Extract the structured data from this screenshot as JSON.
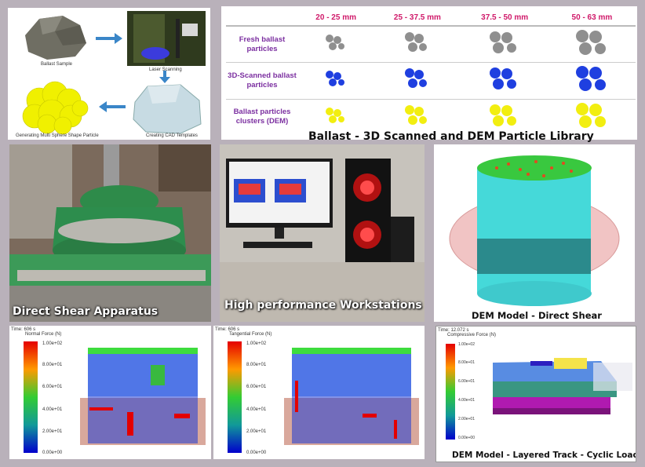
{
  "workflow": {
    "ballast_sample": "Ballast Sample",
    "laser_scanning": "Laser Scanning",
    "cad_templates": "Creating CAD Templates",
    "multi_sphere": "Generating Multi Sphere Shape Particle"
  },
  "library": {
    "columns": [
      "20 - 25 mm",
      "25 - 37.5 mm",
      "37.5 - 50 mm",
      "50 - 63 mm"
    ],
    "rows": [
      {
        "label": "Fresh ballast particles",
        "color": "#8f8f8f"
      },
      {
        "label": "3D-Scanned ballast particles",
        "color": "#1f3fe0"
      },
      {
        "label": "Ballast particles clusters (DEM)",
        "color": "#f2ee10"
      }
    ],
    "caption": "Ballast - 3D Scanned and DEM Particle Library"
  },
  "captions": {
    "direct_shear_apparatus": "Direct Shear Apparatus",
    "workstations": "High performance Workstations",
    "dem_direct_shear": "DEM Model - Direct Shear",
    "dem_layered_track": "DEM Model - Layered Track - Cyclic Load"
  },
  "force_plots": [
    {
      "time": "Time: 606 s",
      "title": "Normal Force (N)",
      "ticks": [
        "1.00e+02",
        "8.00e+01",
        "6.00e+01",
        "4.00e+01",
        "2.00e+01",
        "0.00e+00"
      ]
    },
    {
      "time": "Time: 606 s",
      "title": "Tangential Force (N)",
      "ticks": [
        "1.00e+02",
        "8.00e+01",
        "6.00e+01",
        "4.00e+01",
        "2.00e+01",
        "0.00e+00"
      ]
    }
  ],
  "track_plot": {
    "time": "Time: 12.072 s",
    "title": "Compressive Force (N)",
    "ticks": [
      "1.00e+02",
      "8.00e+01",
      "6.00e+01",
      "4.00e+01",
      "2.00e+01",
      "0.00e+00"
    ]
  },
  "colors": {
    "background": "#b9b1ba",
    "magenta_header": "#d01a6a",
    "purple_label": "#7b2fa0"
  }
}
